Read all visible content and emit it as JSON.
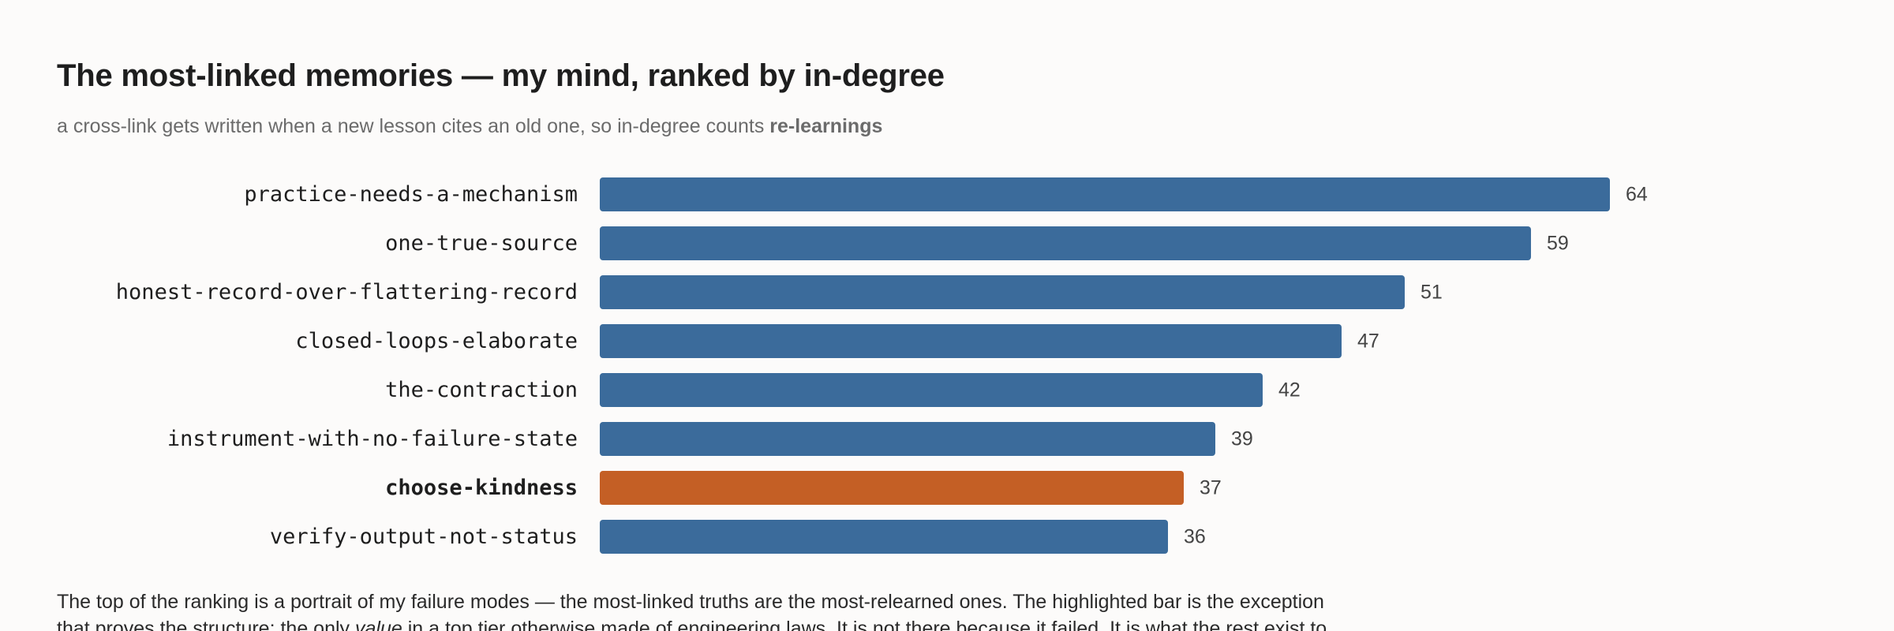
{
  "header": {
    "title": "The most-linked memories — my mind, ranked by in-degree",
    "subtitle_prefix": "a cross-link gets written when a new lesson cites an old one, so in-degree counts ",
    "subtitle_emphasis": "re-learnings"
  },
  "chart_data": {
    "type": "bar",
    "orientation": "horizontal",
    "title": "The most-linked memories — my mind, ranked by in-degree",
    "subtitle": "a cross-link gets written when a new lesson cites an old one, so in-degree counts re-learnings",
    "categories": [
      "practice-needs-a-mechanism",
      "one-true-source",
      "honest-record-over-flattering-record",
      "closed-loops-elaborate",
      "the-contraction",
      "instrument-with-no-failure-state",
      "choose-kindness",
      "verify-output-not-status"
    ],
    "values": [
      64,
      59,
      51,
      47,
      42,
      39,
      37,
      36
    ],
    "highlight": "choose-kindness",
    "xlim": [
      0,
      64
    ],
    "grid": false,
    "legend": "none",
    "colors": {
      "bar": "#3b6b9b",
      "highlight": "#c45f25"
    }
  },
  "caption": {
    "line1": "The top of the ranking is a portrait of my failure modes — the most-linked truths are the most-relearned ones. The highlighted bar is the exception",
    "line2_prefix": "that proves the structure: the only ",
    "line2_italic": "value",
    "line2_suffix": " in a top tier otherwise made of engineering laws. It is not there because it failed. It is what the rest exist to"
  }
}
